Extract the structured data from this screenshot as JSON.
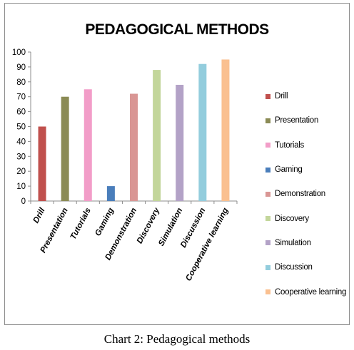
{
  "chart_data": {
    "type": "bar",
    "title": "PEDAGOGICAL METHODS",
    "categories": [
      "Drill",
      "Presentation",
      "Tutorials",
      "Gaming",
      "Demonstration",
      "Discovery",
      "Simulation",
      "Discussion",
      "Cooperative learning"
    ],
    "values": [
      50,
      70,
      75,
      10,
      72,
      88,
      78,
      92,
      95
    ],
    "colors": [
      "#c0504d",
      "#8b8b55",
      "#f29dc8",
      "#4a7ebb",
      "#d99694",
      "#c3d69b",
      "#b3a2c7",
      "#93cddd",
      "#fac090"
    ],
    "ylim": [
      0,
      100
    ],
    "yticks": [
      "0",
      "10",
      "20",
      "30",
      "40",
      "50",
      "60",
      "70",
      "80",
      "90",
      "100"
    ],
    "grid": false,
    "legend_position": "right"
  },
  "caption": "Chart 2: Pedagogical methods"
}
